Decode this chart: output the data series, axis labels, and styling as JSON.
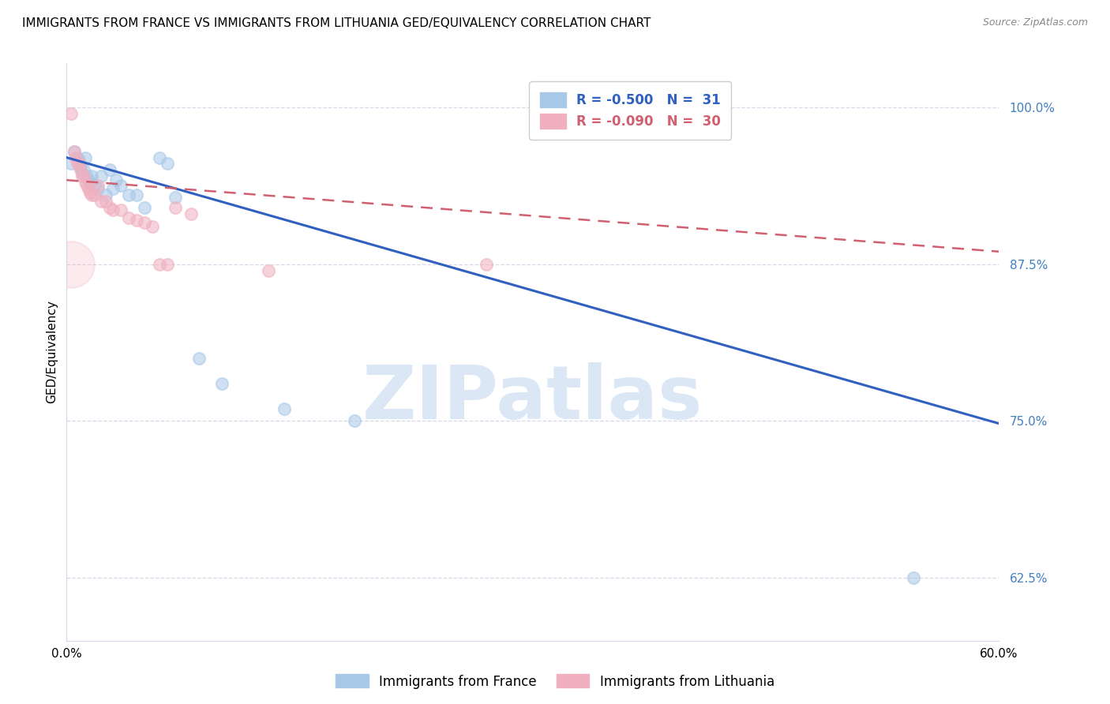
{
  "title": "IMMIGRANTS FROM FRANCE VS IMMIGRANTS FROM LITHUANIA GED/EQUIVALENCY CORRELATION CHART",
  "source": "Source: ZipAtlas.com",
  "ylabel": "GED/Equivalency",
  "watermark": "ZIPatlas",
  "blue_label": "Immigrants from France",
  "pink_label": "Immigrants from Lithuania",
  "blue_R": "-0.500",
  "blue_N": "31",
  "pink_R": "-0.090",
  "pink_N": "30",
  "yticks": [
    0.625,
    0.75,
    0.875,
    1.0
  ],
  "ytick_labels": [
    "62.5%",
    "75.0%",
    "87.5%",
    "100.0%"
  ],
  "xlim": [
    0.0,
    0.6
  ],
  "ylim": [
    0.575,
    1.035
  ],
  "blue_scatter_x": [
    0.003,
    0.005,
    0.007,
    0.008,
    0.009,
    0.01,
    0.011,
    0.012,
    0.013,
    0.014,
    0.015,
    0.016,
    0.018,
    0.02,
    0.022,
    0.025,
    0.028,
    0.03,
    0.032,
    0.035,
    0.04,
    0.045,
    0.05,
    0.06,
    0.065,
    0.07,
    0.085,
    0.1,
    0.14,
    0.185,
    0.545
  ],
  "blue_scatter_y": [
    0.955,
    0.965,
    0.96,
    0.958,
    0.952,
    0.948,
    0.95,
    0.96,
    0.945,
    0.942,
    0.94,
    0.945,
    0.938,
    0.935,
    0.945,
    0.93,
    0.95,
    0.935,
    0.942,
    0.938,
    0.93,
    0.93,
    0.92,
    0.96,
    0.955,
    0.928,
    0.8,
    0.78,
    0.76,
    0.75,
    0.625
  ],
  "pink_scatter_x": [
    0.003,
    0.005,
    0.006,
    0.007,
    0.008,
    0.009,
    0.01,
    0.011,
    0.012,
    0.013,
    0.014,
    0.015,
    0.016,
    0.018,
    0.02,
    0.022,
    0.025,
    0.028,
    0.03,
    0.035,
    0.04,
    0.045,
    0.05,
    0.055,
    0.06,
    0.065,
    0.07,
    0.08,
    0.13,
    0.27
  ],
  "pink_scatter_y": [
    0.995,
    0.965,
    0.96,
    0.955,
    0.955,
    0.95,
    0.945,
    0.945,
    0.94,
    0.938,
    0.935,
    0.932,
    0.93,
    0.93,
    0.938,
    0.925,
    0.925,
    0.92,
    0.918,
    0.918,
    0.912,
    0.91,
    0.908,
    0.905,
    0.875,
    0.875,
    0.92,
    0.915,
    0.87,
    0.875
  ],
  "blue_line_x": [
    0.0,
    0.6
  ],
  "blue_line_y": [
    0.96,
    0.748
  ],
  "pink_line_x": [
    0.0,
    0.6
  ],
  "pink_line_y": [
    0.942,
    0.885
  ],
  "blue_color": "#a8c8e8",
  "pink_color": "#f0b0c0",
  "blue_line_color": "#3060c0",
  "pink_line_color": "#d06070",
  "grid_color": "#d8d8e8",
  "title_fontsize": 11,
  "legend_fontsize": 12,
  "axis_label_fontsize": 11,
  "tick_fontsize": 11,
  "tick_color": "#4080c0"
}
